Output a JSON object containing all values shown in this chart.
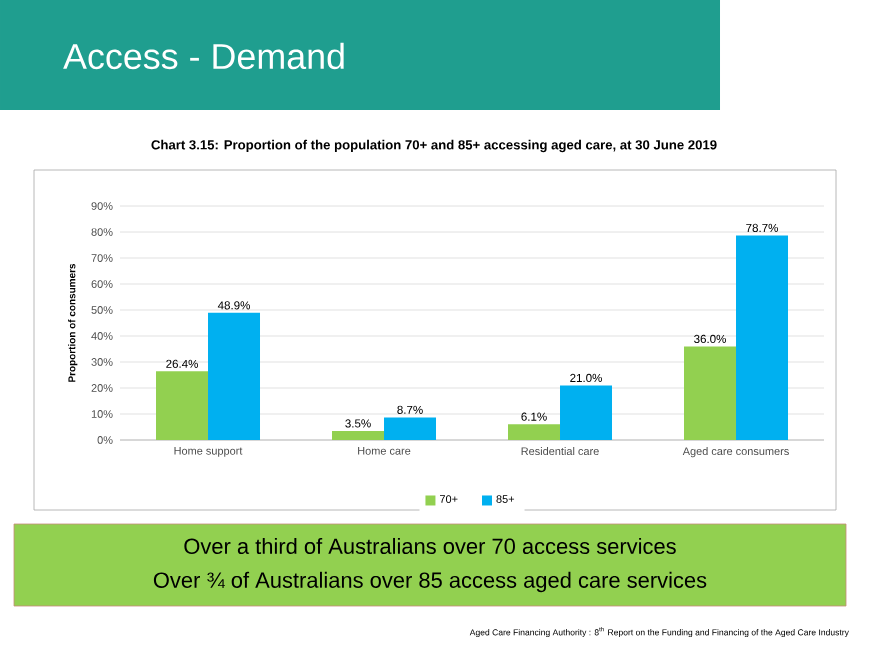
{
  "chart_data": {
    "type": "bar",
    "title": "Access - Demand",
    "subtitle": "Chart 3.15: Proportion of the population 70+ and 85+ accessing aged care, at 30 June 2019",
    "ylabel": "Proportion of consumers",
    "categories": [
      "Home support",
      "Home care",
      "Residential care",
      "Aged care consumers"
    ],
    "series": [
      {
        "name": "70+",
        "color": "#92d050",
        "values": [
          26.4,
          3.5,
          6.1,
          36.0
        ],
        "value_labels": [
          "26.4%",
          "3.5%",
          "6.1%",
          "36.0%"
        ]
      },
      {
        "name": "85+",
        "color": "#00b0f0",
        "values": [
          48.9,
          8.7,
          21.0,
          78.7
        ],
        "value_labels": [
          "48.9%",
          "8.7%",
          "21.0%",
          "78.7%"
        ]
      }
    ],
    "ylim": [
      0,
      90
    ],
    "yticks": [
      {
        "value": 0,
        "label": "0%"
      },
      {
        "value": 10,
        "label": "10%"
      },
      {
        "value": 20,
        "label": "20%"
      },
      {
        "value": 30,
        "label": "30%"
      },
      {
        "value": 40,
        "label": "40%"
      },
      {
        "value": 50,
        "label": "50%"
      },
      {
        "value": 60,
        "label": "60%"
      },
      {
        "value": 70,
        "label": "70%"
      },
      {
        "value": 80,
        "label": "80%"
      },
      {
        "value": 90,
        "label": "90%"
      }
    ],
    "grid": "y",
    "legend": "bottom",
    "annotations": [
      "Over a third of Australians over 70 access services",
      "Over ¾ of Australians over 85 access aged care services",
      "Aged Care Financing Authority : 8$^{th}$ Report on the Funding and Financing of the Aged Care Industry"
    ]
  }
}
